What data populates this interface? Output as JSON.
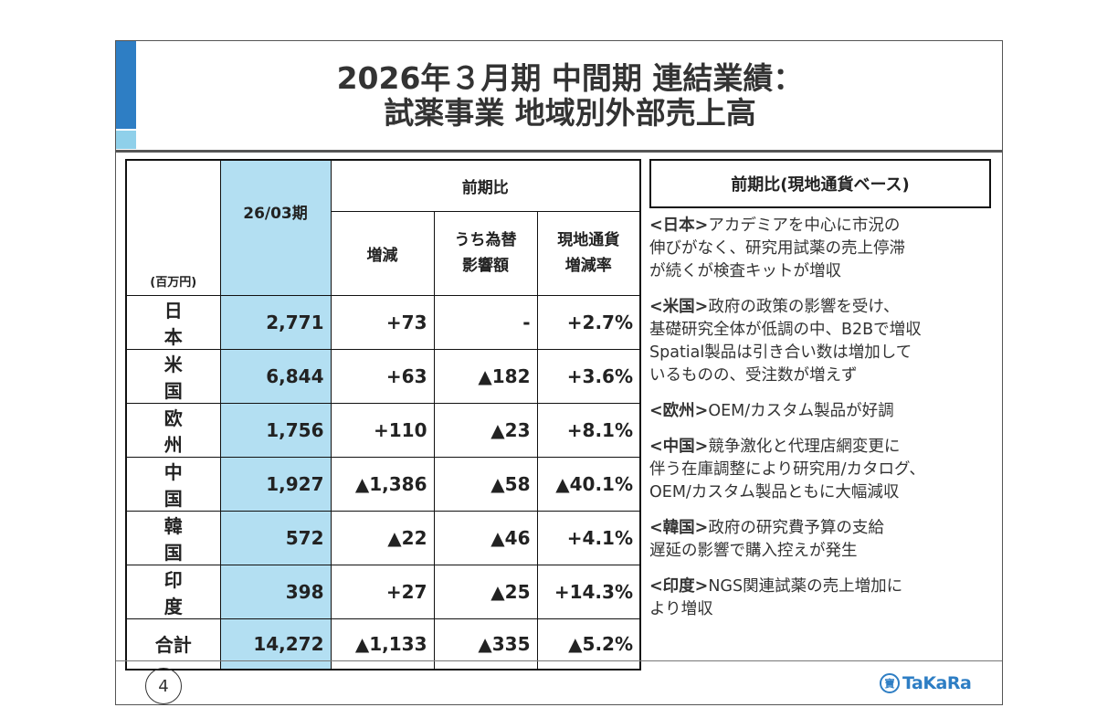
{
  "title": {
    "line1": "2026年３月期 中間期 連結業績：",
    "line2": "試薬事業 地域別外部売上高"
  },
  "table": {
    "unit": "(百万円)",
    "period": "26/03期",
    "group_header": "前期比",
    "col_change": "増減",
    "col_fx_line1": "うち為替",
    "col_fx_line2": "影響額",
    "col_local_line1": "現地通貨",
    "col_local_line2": "増減率",
    "rows": [
      {
        "region": "日本",
        "sales": "2,771",
        "change": "+73",
        "fx": "-",
        "local": "+2.7%"
      },
      {
        "region": "米国",
        "sales": "6,844",
        "change": "+63",
        "fx": "▲182",
        "local": "+3.6%"
      },
      {
        "region": "欧州",
        "sales": "1,756",
        "change": "+110",
        "fx": "▲23",
        "local": "+8.1%"
      },
      {
        "region": "中国",
        "sales": "1,927",
        "change": "▲1,386",
        "fx": "▲58",
        "local": "▲40.1%"
      },
      {
        "region": "韓国",
        "sales": "572",
        "change": "▲22",
        "fx": "▲46",
        "local": "+4.1%"
      },
      {
        "region": "印度",
        "sales": "398",
        "change": "+27",
        "fx": "▲25",
        "local": "+14.3%"
      }
    ],
    "total": {
      "region": "合計",
      "sales": "14,272",
      "change": "▲1,133",
      "fx": "▲335",
      "local": "▲5.2%"
    }
  },
  "comments": {
    "header": "前期比(現地通貨ベース)",
    "japan": {
      "name": "<日本>",
      "lines": [
        "アカデミアを中心に市況の",
        "伸びがなく、研究用試薬の売上停滞",
        "が続くが検査キットが増収"
      ]
    },
    "usa": {
      "name": "<米国>",
      "lines": [
        "政府の政策の影響を受け、",
        "基礎研究全体が低調の中、B2Bで増収",
        "Spatial製品は引き合い数は増加して",
        "いるものの、受注数が増えず"
      ]
    },
    "europe": {
      "name": "<欧州>",
      "lines": [
        "OEM/カスタム製品が好調"
      ]
    },
    "china": {
      "name": "<中国>",
      "lines": [
        "競争激化と代理店網変更に",
        "伴う在庫調整により研究用/カタログ、",
        "OEM/カスタム製品ともに大幅減収"
      ]
    },
    "korea": {
      "name": "<韓国>",
      "lines": [
        "政府の研究費予算の支給",
        "遅延の影響で購入控えが発生"
      ]
    },
    "india": {
      "name": "<印度>",
      "lines": [
        "NGS関連試薬の売上増加に",
        "より増収"
      ]
    }
  },
  "footer": {
    "page_number": "4",
    "logo_mark": "寶",
    "logo_text": "TaKaRa"
  },
  "colors": {
    "accent_blue": "#2e7ec4",
    "light_blue": "#b3dff2"
  }
}
